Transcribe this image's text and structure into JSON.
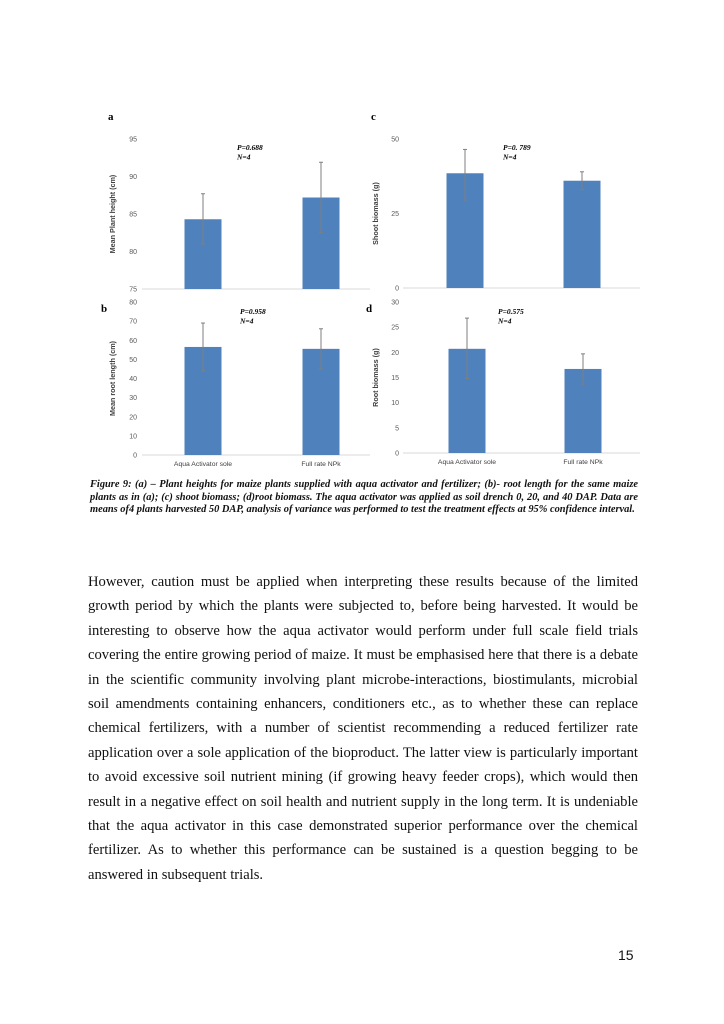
{
  "chart_data": [
    {
      "panel": "a",
      "type": "bar",
      "categories": [
        "Aqua Activator sole",
        "Full rate NPk"
      ],
      "show_categories": false,
      "values": [
        84.3,
        87.2
      ],
      "error_low": [
        81.0,
        82.5
      ],
      "error_high": [
        87.7,
        91.9
      ],
      "ylabel": "Mean Plant height (cm)",
      "ylim": [
        75,
        95
      ],
      "yticks": [
        "75",
        "80",
        "85",
        "90",
        "95"
      ],
      "ytick_values": [
        75,
        80,
        85,
        90,
        95
      ],
      "annotation": [
        "P=0.688",
        "N=4"
      ],
      "color": "#4f81bd"
    },
    {
      "panel": "c",
      "type": "bar",
      "categories": [
        "Aqua Activator sole",
        "Full rate NPk"
      ],
      "show_categories": false,
      "values": [
        38.5,
        36.0
      ],
      "error_low": [
        29.5,
        33.0
      ],
      "error_high": [
        46.5,
        39.0
      ],
      "ylabel": "Shoot biomass (g)",
      "ylim": [
        0,
        50
      ],
      "yticks": [
        "0",
        "25",
        "50"
      ],
      "ytick_values": [
        0,
        25,
        50
      ],
      "annotation": [
        "P=0. 789",
        "N=4"
      ],
      "color": "#4f81bd"
    },
    {
      "panel": "b",
      "type": "bar",
      "categories": [
        "Aqua Activator sole",
        "Full rate NPk"
      ],
      "show_categories": true,
      "values": [
        56.5,
        55.5
      ],
      "error_low": [
        44.0,
        45.0
      ],
      "error_high": [
        69.0,
        66.0
      ],
      "ylabel": "Mean root length (cm)",
      "ylim": [
        0,
        80
      ],
      "yticks": [
        "0",
        "10",
        "20",
        "30",
        "40",
        "50",
        "60",
        "70",
        "80"
      ],
      "ytick_values": [
        0,
        10,
        20,
        30,
        40,
        50,
        60,
        70,
        80
      ],
      "annotation": [
        "P=0.958",
        "N=4"
      ],
      "color": "#4f81bd"
    },
    {
      "panel": "d",
      "type": "bar",
      "categories": [
        "Aqua Activator sole",
        "Full rate NPk"
      ],
      "show_categories": true,
      "values": [
        20.7,
        16.7
      ],
      "error_low": [
        14.8,
        13.7
      ],
      "error_high": [
        26.8,
        19.7
      ],
      "ylabel": "Root biomass (g)",
      "ylim": [
        0,
        30
      ],
      "yticks": [
        "0",
        "5",
        "10",
        "15",
        "20",
        "25",
        "30"
      ],
      "ytick_values": [
        0,
        5,
        10,
        15,
        20,
        25,
        30
      ],
      "annotation": [
        "P=0.575",
        "N=4"
      ],
      "color": "#4f81bd"
    }
  ],
  "caption": "Figure 9: (a) – Plant heights for maize plants supplied with aqua activator and fertilizer; (b)- root length for the same maize plants as in (a); (c) shoot biomass; (d)root biomass. The aqua activator was applied as soil drench 0, 20, and 40 DAP. Data are means of4 plants harvested 50 DAP, analysis of variance was performed to test the treatment effects at 95% confidence interval.",
  "body": "However, caution must be applied when interpreting these results because of the limited growth period by which the plants were subjected to, before being harvested. It would be interesting to observe how the aqua activator would perform under full scale field trials covering the entire growing period of maize. It must be emphasised here that there is a debate in the scientific community involving plant microbe-interactions, biostimulants, microbial soil amendments containing enhancers, conditioners etc., as to whether these can replace chemical fertilizers, with a number of scientist recommending a reduced fertilizer rate application over a sole application of the bioproduct. The latter view is particularly important to avoid excessive soil nutrient mining (if growing heavy feeder crops), which would then result in a negative effect on soil health and nutrient supply in the long term. It is undeniable that the aqua activator in this case demonstrated superior performance over the chemical fertilizer. As to whether this performance can be sustained is a question begging to be answered in subsequent trials.",
  "page_number": "15"
}
